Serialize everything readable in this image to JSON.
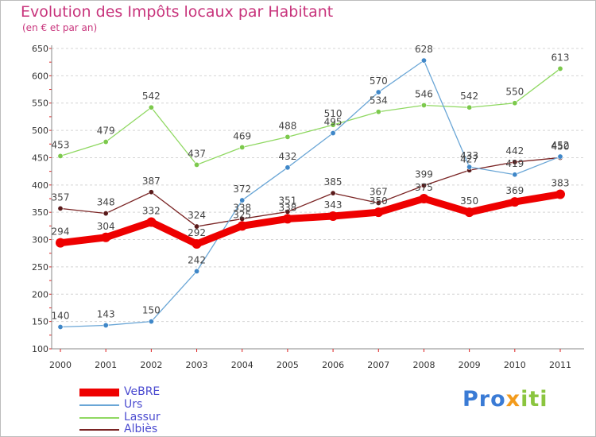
{
  "header": {
    "title": "Evolution des Impôts locaux par Habitant",
    "subtitle": "(en € et par an)"
  },
  "logo": {
    "text": "Proxiti",
    "colors": [
      "#3a7bd5",
      "#f39b1c",
      "#8bc53f"
    ]
  },
  "chart_data": {
    "type": "line",
    "title": "Evolution des Impôts locaux par Habitant",
    "subtitle": "(en € et par an)",
    "xlabel": "",
    "ylabel": "",
    "ylim": [
      100,
      650
    ],
    "yticks": [
      100,
      150,
      200,
      250,
      300,
      350,
      400,
      450,
      500,
      550,
      600,
      650
    ],
    "grid": "horizontal dashed",
    "legend_position": "bottom-left",
    "categories": [
      "2000",
      "2001",
      "2002",
      "2003",
      "2004",
      "2005",
      "2006",
      "2007",
      "2008",
      "2009",
      "2010",
      "2011"
    ],
    "series": [
      {
        "name": "Albiès",
        "color": "#7a2424",
        "marker": "#5a1a1a",
        "values": [
          357,
          348,
          387,
          324,
          338,
          351,
          385,
          367,
          399,
          427,
          442,
          450
        ]
      },
      {
        "name": "Lassur",
        "color": "#8fd861",
        "marker": "#7cc94c",
        "values": [
          453,
          479,
          542,
          437,
          469,
          488,
          510,
          534,
          546,
          542,
          550,
          613
        ]
      },
      {
        "name": "Urs",
        "color": "#6aa6d6",
        "marker": "#3f87c8",
        "values": [
          140,
          143,
          150,
          242,
          372,
          432,
          495,
          570,
          628,
          433,
          419,
          452
        ]
      },
      {
        "name": "VeBRE",
        "color": "#ee0000",
        "marker": "#ee0000",
        "values": [
          294,
          304,
          332,
          292,
          325,
          338,
          343,
          350,
          375,
          350,
          369,
          383
        ]
      }
    ],
    "legend": [
      "VeBRE",
      "Urs",
      "Lassur",
      "Albiès"
    ]
  }
}
